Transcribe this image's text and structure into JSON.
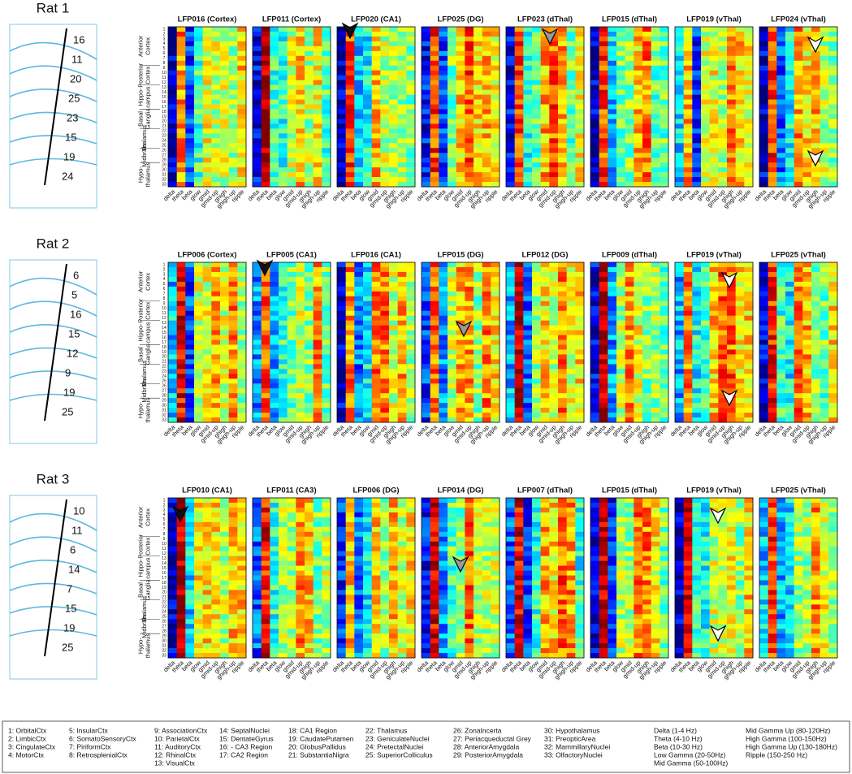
{
  "rats": [
    {
      "label": "Rat 1",
      "electrodes": [
        "16",
        "11",
        "20",
        "25",
        "23",
        "15",
        "19",
        "24"
      ],
      "panels": [
        "LFP016 (Cortex)",
        "LFP011 (Cortex)",
        "LFP020 (CA1)",
        "LFP025 (DG)",
        "LFP023 (dThal)",
        "LFP015 (dThal)",
        "LFP019 (vThal)",
        "LFP024 (vThal)"
      ]
    },
    {
      "label": "Rat 2",
      "electrodes": [
        "6",
        "5",
        "16",
        "15",
        "12",
        "9",
        "19",
        "25"
      ],
      "panels": [
        "LFP006 (Cortex)",
        "LFP005 (CA1)",
        "LFP016 (CA1)",
        "LFP015 (DG)",
        "LFP012 (DG)",
        "LFP009 (dThal)",
        "LFP019 (vThal)",
        "LFP025 (vThal)"
      ]
    },
    {
      "label": "Rat 3",
      "electrodes": [
        "10",
        "11",
        "6",
        "14",
        "7",
        "15",
        "19",
        "25"
      ],
      "panels": [
        "LFP010 (CA1)",
        "LFP011 (CA3)",
        "LFP006 (DG)",
        "LFP014 (DG)",
        "LFP007 (dThal)",
        "LFP015  (dThal)",
        "LFP019  (vThal)",
        "LFP025  (vThal)"
      ]
    }
  ],
  "row_groups": [
    [
      "Anterior",
      "Cortex"
    ],
    [
      "Posterior",
      "Cortex"
    ],
    [
      "Hippo-",
      "campus"
    ],
    [
      "Basal",
      "Ganglia"
    ],
    [
      "Thalamus"
    ],
    [
      "Midbrain"
    ],
    [
      "Hypo-",
      "thalamus"
    ]
  ],
  "row_numbers": [
    "1",
    "2",
    "3",
    "4",
    "5",
    "6",
    "7",
    "8",
    "9",
    "10",
    "11",
    "12",
    "13",
    "14",
    "15",
    "16",
    "17",
    "18",
    "19",
    "20",
    "21",
    "22",
    "23",
    "24",
    "25",
    "26",
    "27",
    "28",
    "29",
    "30",
    "31",
    "32",
    "33"
  ],
  "bands": [
    "delta",
    "theta",
    "beta",
    "glow",
    "gmid",
    "gmid-up",
    "ghigh",
    "ghigh-up",
    "ripple"
  ],
  "legend": [
    [
      "1: OrbitalCtx",
      "2: LimbicCtx",
      "3: CingulateCtx",
      "4: MotorCtx"
    ],
    [
      "5: InsularCtx",
      "6: SomatoSensoryCtx",
      "7: PiriformCtx",
      "8: RetrosplenialCtx"
    ],
    [
      "9: AssociationCtx",
      "10: ParietalCtx",
      "11: AuditoryCtx",
      "12: RhinalCtx",
      "13: VisualCtx"
    ],
    [
      "14: SeptalNuclei",
      "15: DentateGyrus",
      "16: - CA3 Region",
      "17: CA2 Region"
    ],
    [
      "18: CA1 Region",
      "19: CaudatePutamen",
      "20: GlobusPallidus",
      "21: SubstantiaNigra"
    ],
    [
      "22: Thalamus",
      "23: GeniculateNuclei",
      "24: PretectalNuclei",
      "25: SuperiorColliculus"
    ],
    [
      "26: ZonaIncerta",
      "27: Periacqueductal Grey",
      "28: AnteriorAmygdala",
      "29: PosteriorAmygdala"
    ],
    [
      "30: Hypothalamus",
      "31: PreopticArea",
      "32: MammillaryNuclei",
      "33: OlfactoryNuclei"
    ],
    [
      "Delta (1-4 Hz)",
      "Theta (4-10 Hz)",
      "Beta (10-30 Hz)",
      "Low Gamma (20-50Hz)",
      "Mid Gamma (50-100Hz)"
    ],
    [
      "Mid Gamma Up (80-120Hz)",
      "High Gamma (100-150Hz)",
      "High Gamma Up (130-180Hz)",
      "Ripple (150-250 Hz)"
    ]
  ]
}
